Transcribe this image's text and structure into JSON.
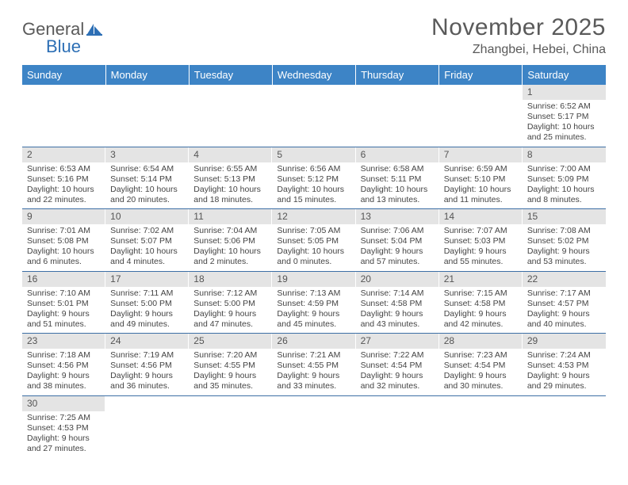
{
  "logo": {
    "text1": "General",
    "text2": "Blue"
  },
  "title": "November 2025",
  "location": "Zhangbei, Hebei, China",
  "colors": {
    "header_bg": "#3d84c6",
    "header_text": "#ffffff",
    "daynum_bg": "#e4e4e4",
    "week_border": "#3d6fa5",
    "logo_gray": "#5a5a5a",
    "logo_blue": "#2d6fb5"
  },
  "dow": [
    "Sunday",
    "Monday",
    "Tuesday",
    "Wednesday",
    "Thursday",
    "Friday",
    "Saturday"
  ],
  "weeks": [
    [
      {
        "n": "",
        "sr": "",
        "ss": "",
        "dl": ""
      },
      {
        "n": "",
        "sr": "",
        "ss": "",
        "dl": ""
      },
      {
        "n": "",
        "sr": "",
        "ss": "",
        "dl": ""
      },
      {
        "n": "",
        "sr": "",
        "ss": "",
        "dl": ""
      },
      {
        "n": "",
        "sr": "",
        "ss": "",
        "dl": ""
      },
      {
        "n": "",
        "sr": "",
        "ss": "",
        "dl": ""
      },
      {
        "n": "1",
        "sr": "Sunrise: 6:52 AM",
        "ss": "Sunset: 5:17 PM",
        "dl": "Daylight: 10 hours and 25 minutes."
      }
    ],
    [
      {
        "n": "2",
        "sr": "Sunrise: 6:53 AM",
        "ss": "Sunset: 5:16 PM",
        "dl": "Daylight: 10 hours and 22 minutes."
      },
      {
        "n": "3",
        "sr": "Sunrise: 6:54 AM",
        "ss": "Sunset: 5:14 PM",
        "dl": "Daylight: 10 hours and 20 minutes."
      },
      {
        "n": "4",
        "sr": "Sunrise: 6:55 AM",
        "ss": "Sunset: 5:13 PM",
        "dl": "Daylight: 10 hours and 18 minutes."
      },
      {
        "n": "5",
        "sr": "Sunrise: 6:56 AM",
        "ss": "Sunset: 5:12 PM",
        "dl": "Daylight: 10 hours and 15 minutes."
      },
      {
        "n": "6",
        "sr": "Sunrise: 6:58 AM",
        "ss": "Sunset: 5:11 PM",
        "dl": "Daylight: 10 hours and 13 minutes."
      },
      {
        "n": "7",
        "sr": "Sunrise: 6:59 AM",
        "ss": "Sunset: 5:10 PM",
        "dl": "Daylight: 10 hours and 11 minutes."
      },
      {
        "n": "8",
        "sr": "Sunrise: 7:00 AM",
        "ss": "Sunset: 5:09 PM",
        "dl": "Daylight: 10 hours and 8 minutes."
      }
    ],
    [
      {
        "n": "9",
        "sr": "Sunrise: 7:01 AM",
        "ss": "Sunset: 5:08 PM",
        "dl": "Daylight: 10 hours and 6 minutes."
      },
      {
        "n": "10",
        "sr": "Sunrise: 7:02 AM",
        "ss": "Sunset: 5:07 PM",
        "dl": "Daylight: 10 hours and 4 minutes."
      },
      {
        "n": "11",
        "sr": "Sunrise: 7:04 AM",
        "ss": "Sunset: 5:06 PM",
        "dl": "Daylight: 10 hours and 2 minutes."
      },
      {
        "n": "12",
        "sr": "Sunrise: 7:05 AM",
        "ss": "Sunset: 5:05 PM",
        "dl": "Daylight: 10 hours and 0 minutes."
      },
      {
        "n": "13",
        "sr": "Sunrise: 7:06 AM",
        "ss": "Sunset: 5:04 PM",
        "dl": "Daylight: 9 hours and 57 minutes."
      },
      {
        "n": "14",
        "sr": "Sunrise: 7:07 AM",
        "ss": "Sunset: 5:03 PM",
        "dl": "Daylight: 9 hours and 55 minutes."
      },
      {
        "n": "15",
        "sr": "Sunrise: 7:08 AM",
        "ss": "Sunset: 5:02 PM",
        "dl": "Daylight: 9 hours and 53 minutes."
      }
    ],
    [
      {
        "n": "16",
        "sr": "Sunrise: 7:10 AM",
        "ss": "Sunset: 5:01 PM",
        "dl": "Daylight: 9 hours and 51 minutes."
      },
      {
        "n": "17",
        "sr": "Sunrise: 7:11 AM",
        "ss": "Sunset: 5:00 PM",
        "dl": "Daylight: 9 hours and 49 minutes."
      },
      {
        "n": "18",
        "sr": "Sunrise: 7:12 AM",
        "ss": "Sunset: 5:00 PM",
        "dl": "Daylight: 9 hours and 47 minutes."
      },
      {
        "n": "19",
        "sr": "Sunrise: 7:13 AM",
        "ss": "Sunset: 4:59 PM",
        "dl": "Daylight: 9 hours and 45 minutes."
      },
      {
        "n": "20",
        "sr": "Sunrise: 7:14 AM",
        "ss": "Sunset: 4:58 PM",
        "dl": "Daylight: 9 hours and 43 minutes."
      },
      {
        "n": "21",
        "sr": "Sunrise: 7:15 AM",
        "ss": "Sunset: 4:58 PM",
        "dl": "Daylight: 9 hours and 42 minutes."
      },
      {
        "n": "22",
        "sr": "Sunrise: 7:17 AM",
        "ss": "Sunset: 4:57 PM",
        "dl": "Daylight: 9 hours and 40 minutes."
      }
    ],
    [
      {
        "n": "23",
        "sr": "Sunrise: 7:18 AM",
        "ss": "Sunset: 4:56 PM",
        "dl": "Daylight: 9 hours and 38 minutes."
      },
      {
        "n": "24",
        "sr": "Sunrise: 7:19 AM",
        "ss": "Sunset: 4:56 PM",
        "dl": "Daylight: 9 hours and 36 minutes."
      },
      {
        "n": "25",
        "sr": "Sunrise: 7:20 AM",
        "ss": "Sunset: 4:55 PM",
        "dl": "Daylight: 9 hours and 35 minutes."
      },
      {
        "n": "26",
        "sr": "Sunrise: 7:21 AM",
        "ss": "Sunset: 4:55 PM",
        "dl": "Daylight: 9 hours and 33 minutes."
      },
      {
        "n": "27",
        "sr": "Sunrise: 7:22 AM",
        "ss": "Sunset: 4:54 PM",
        "dl": "Daylight: 9 hours and 32 minutes."
      },
      {
        "n": "28",
        "sr": "Sunrise: 7:23 AM",
        "ss": "Sunset: 4:54 PM",
        "dl": "Daylight: 9 hours and 30 minutes."
      },
      {
        "n": "29",
        "sr": "Sunrise: 7:24 AM",
        "ss": "Sunset: 4:53 PM",
        "dl": "Daylight: 9 hours and 29 minutes."
      }
    ],
    [
      {
        "n": "30",
        "sr": "Sunrise: 7:25 AM",
        "ss": "Sunset: 4:53 PM",
        "dl": "Daylight: 9 hours and 27 minutes."
      },
      {
        "n": "",
        "sr": "",
        "ss": "",
        "dl": ""
      },
      {
        "n": "",
        "sr": "",
        "ss": "",
        "dl": ""
      },
      {
        "n": "",
        "sr": "",
        "ss": "",
        "dl": ""
      },
      {
        "n": "",
        "sr": "",
        "ss": "",
        "dl": ""
      },
      {
        "n": "",
        "sr": "",
        "ss": "",
        "dl": ""
      },
      {
        "n": "",
        "sr": "",
        "ss": "",
        "dl": ""
      }
    ]
  ]
}
